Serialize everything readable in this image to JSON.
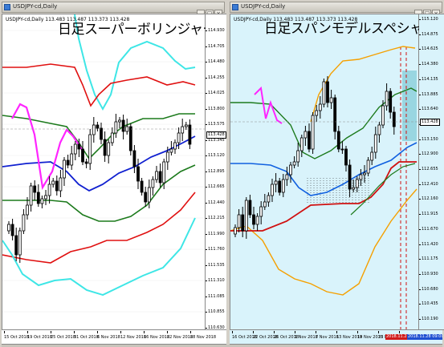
{
  "colors": {
    "candle": "#000000",
    "band_inner": "#1c7a1c",
    "band_mid": "#e01010",
    "band_outer": "#3ee6e6",
    "middle_line": "#1020d0",
    "pink": "#ff24ff",
    "dot": "#000000",
    "span_senko": "#f5a000",
    "span_mid": "#1c7a1c",
    "span_blue": "#1060e0",
    "span_red": "#d01010",
    "span_highlight": "#8dd0dc",
    "span_vline": "#d01010",
    "cross": "#909090"
  },
  "left": {
    "window_title": "USDJPY-cd,Daily",
    "chart_title": "USDJPY-cd,Daily  113.483 113.487 113.373 113.428",
    "heading": "日足スーパーボリンジャー",
    "price_label": "113.428",
    "yticks": [
      "114.930",
      "114.705",
      "114.480",
      "114.255",
      "114.025",
      "113.800",
      "113.575",
      "113.345",
      "113.120",
      "112.895",
      "112.665",
      "112.440",
      "112.215",
      "111.990",
      "111.760",
      "111.535",
      "111.310",
      "111.085",
      "110.855",
      "110.630"
    ],
    "xticks": [
      "15 Oct 2018",
      "19 Oct 2018",
      "25 Oct 2018",
      "31 Oct 2018",
      "6 Nov 2018",
      "12 Nov 2018",
      "16 Nov 2018",
      "22 Nov 2018",
      "28 Nov 2018"
    ]
  },
  "right": {
    "window_title": "USDJPY-cd,Daily",
    "chart_title": "USDJPY-cd,Daily  113.483 113.487 113.373 113.428",
    "heading": "日足スパンモデルスペシャル",
    "price_label": "113.428",
    "yticks": [
      "115.120",
      "114.875",
      "114.625",
      "114.380",
      "114.135",
      "113.885",
      "113.640",
      "113.395",
      "113.150",
      "112.900",
      "112.655",
      "112.410",
      "112.160",
      "111.915",
      "111.670",
      "111.420",
      "111.175",
      "110.930",
      "110.680",
      "110.435",
      "110.190"
    ],
    "xticks": [
      "16 Oct 2018",
      "22 Oct 2018",
      "26 Oct 2018",
      "1 Nov 2018",
      "7 Nov 2018",
      "13 Nov 2018",
      "19 Nov 2018",
      "23 Nov 2018",
      "29 Nov 2018"
    ],
    "xaxis_markers": [
      "2018.11.28 00:00",
      "2018.11.28 09:00"
    ]
  },
  "window_buttons": {
    "minimize": "_",
    "maximize": "□",
    "close": "×"
  }
}
